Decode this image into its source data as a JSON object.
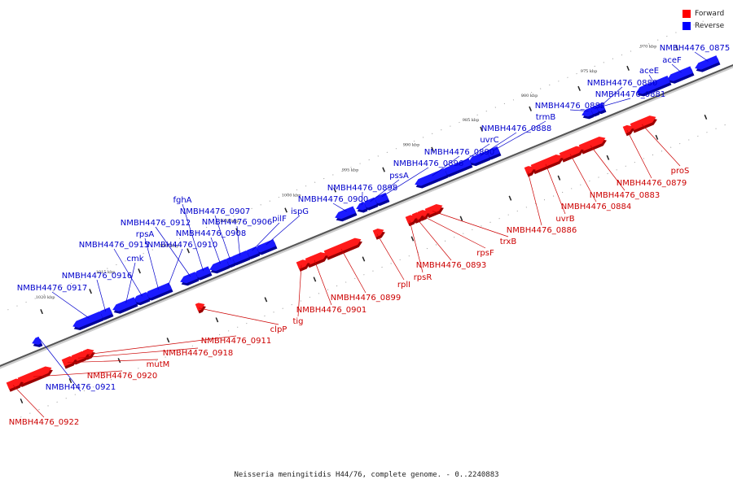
{
  "legend": {
    "forward_label": "Forward",
    "reverse_label": "Reverse",
    "forward_color": "#ff0000",
    "reverse_color": "#0000ff"
  },
  "caption": "Neisseria meningitidis H44/76, complete genome. - 0..2240883",
  "colors": {
    "forward_text": "#cc0000",
    "reverse_text": "#0000cc",
    "backbone": "#777777",
    "tick": "#222222"
  },
  "kbp_labels": [
    "1020 kbp",
    "1015 kbp",
    "1010 kbp",
    "1005 kbp",
    "1000 kbp",
    "995 kbp",
    "990 kbp",
    "985 kbp",
    "980 kbp",
    "975 kbp",
    "970 kbp"
  ],
  "reverse_genes": [
    "NMBH4476_0875",
    "aceF",
    "aceE",
    "NMBH4476_0880",
    "NMBH4476_0881",
    "NMBH4476_0882",
    "trmB",
    "NMBH4476_0888",
    "uvrC",
    "NMBH4476_0890",
    "NMBH4476_0896",
    "pssA",
    "NMBH4476_0898",
    "NMBH4476_0900",
    "ispG",
    "pilF",
    "NMBH4476_0906",
    "NMBH4476_0907",
    "NMBH4476_0908",
    "fghA",
    "NMBH4476_0912",
    "NMBH4476_0910",
    "rpsA",
    "NMBH4476_0915",
    "cmk",
    "NMBH4476_0916",
    "NMBH4476_0917",
    "NMBH4476_0921"
  ],
  "forward_genes": [
    "proS",
    "NMBH4476_0879",
    "NMBH4476_0883",
    "NMBH4476_0884",
    "uvrB",
    "NMBH4476_0886",
    "trxB",
    "rpsF",
    "NMBH4476_0893",
    "rpsR",
    "rplI",
    "NMBH4476_0899",
    "NMBH4476_0901",
    "tig",
    "clpP",
    "NMBH4476_0911",
    "NMBH4476_0918",
    "mutM",
    "NMBH4476_0920",
    "NMBH4476_0922"
  ]
}
